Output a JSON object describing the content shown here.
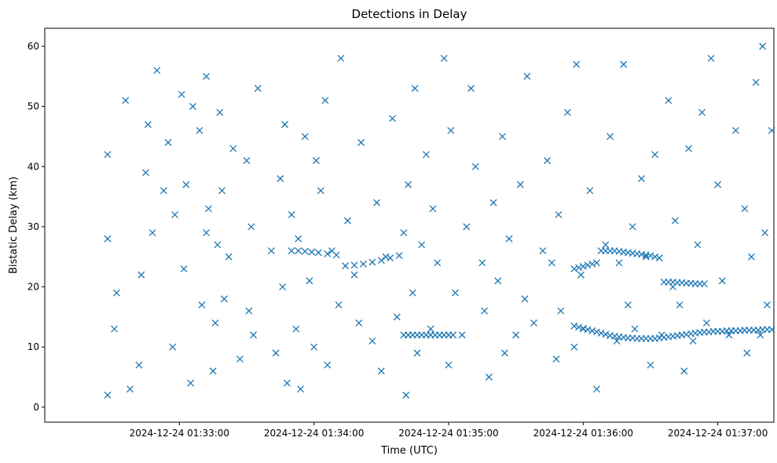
{
  "chart_data": {
    "type": "scatter",
    "title": "Detections in Delay",
    "xlabel": "Time (UTC)",
    "ylabel": "Bistatic Delay (km)",
    "x_ticks": [
      "2024-12-24 01:33:00",
      "2024-12-24 01:34:00",
      "2024-12-24 01:35:00",
      "2024-12-24 01:36:00",
      "2024-12-24 01:37:00"
    ],
    "x_tick_seconds": [
      60,
      120,
      180,
      240,
      300
    ],
    "y_ticks": [
      0,
      10,
      20,
      30,
      40,
      50,
      60
    ],
    "x_range_seconds": [
      0,
      325
    ],
    "ylim": [
      -2.5,
      63
    ],
    "grid": false,
    "legend": "none",
    "marker": "x",
    "color": "#1f77b4",
    "x_start": "2024-12-24 01:32:00",
    "series": [
      {
        "x_seconds": [
          28,
          28,
          28,
          31,
          32,
          36,
          38,
          42,
          43,
          45,
          46,
          48,
          50,
          53,
          55,
          57,
          58,
          61,
          62,
          63,
          65,
          66,
          69,
          70,
          72,
          72,
          73,
          75,
          76,
          77,
          78,
          79,
          80,
          82,
          84,
          87,
          90,
          91,
          92,
          93,
          95,
          101,
          103,
          105,
          106,
          107,
          108,
          110,
          112,
          113,
          114,
          116,
          118,
          120,
          121,
          123,
          125,
          126,
          128,
          131,
          132,
          135,
          138,
          140,
          141,
          146,
          148,
          150,
          152,
          155,
          157,
          160,
          161,
          162,
          164,
          165,
          166,
          168,
          170,
          172,
          173,
          175,
          178,
          180,
          181,
          183,
          186,
          188,
          190,
          192,
          195,
          196,
          198,
          200,
          202,
          204,
          205,
          207,
          210,
          212,
          214,
          215,
          218,
          222,
          224,
          226,
          228,
          229,
          230,
          233,
          236,
          237,
          239,
          240,
          243,
          246,
          250,
          252,
          255,
          256,
          258,
          260,
          262,
          263,
          266,
          268,
          270,
          272,
          275,
          278,
          280,
          281,
          283,
          285,
          287,
          289,
          291,
          293,
          295,
          297,
          300,
          302,
          305,
          308,
          312,
          313,
          315,
          317,
          319,
          320,
          321,
          322,
          324
        ],
        "y": [
          2,
          28,
          42,
          13,
          19,
          51,
          3,
          7,
          22,
          39,
          47,
          29,
          56,
          36,
          44,
          10,
          32,
          52,
          23,
          37,
          4,
          50,
          46,
          17,
          29,
          55,
          33,
          6,
          14,
          27,
          49,
          36,
          18,
          25,
          43,
          8,
          41,
          16,
          30,
          12,
          53,
          26,
          9,
          38,
          20,
          47,
          4,
          32,
          13,
          28,
          3,
          45,
          21,
          10,
          41,
          36,
          51,
          7,
          26,
          17,
          58,
          31,
          22,
          14,
          44,
          11,
          34,
          6,
          25,
          48,
          15,
          29,
          2,
          37,
          19,
          53,
          9,
          27,
          42,
          13,
          33,
          24,
          58,
          7,
          46,
          19,
          12,
          30,
          53,
          40,
          24,
          16,
          5,
          34,
          21,
          45,
          9,
          28,
          12,
          37,
          18,
          55,
          14,
          26,
          41,
          24,
          8,
          32,
          16,
          49,
          10,
          57,
          22,
          13,
          36,
          3,
          27,
          45,
          11,
          24,
          57,
          17,
          30,
          13,
          38,
          25,
          7,
          42,
          12,
          51,
          20,
          31,
          17,
          6,
          43,
          11,
          27,
          49,
          14,
          58,
          37,
          21,
          12,
          46,
          33,
          9,
          25,
          54,
          12,
          60,
          29,
          17,
          46
        ]
      },
      {
        "x_seconds": [
          110,
          113,
          116,
          119,
          122,
          126,
          130,
          134,
          138,
          142,
          146,
          150,
          154,
          158,
          160,
          162,
          164,
          166,
          168,
          170,
          172,
          174,
          176,
          178,
          180,
          182
        ],
        "y": [
          26,
          26,
          25.9,
          25.8,
          25.7,
          25.5,
          25.3,
          23.5,
          23.6,
          23.8,
          24.1,
          24.4,
          24.8,
          25.2,
          12,
          12,
          12,
          12,
          12,
          12,
          12,
          12,
          12,
          12,
          12,
          12
        ]
      },
      {
        "x_seconds": [
          236,
          238,
          240,
          242,
          244,
          246,
          248,
          250,
          252,
          254,
          256,
          258,
          260,
          262,
          264,
          266,
          268,
          270,
          272,
          274,
          276,
          278,
          280,
          282,
          284,
          286,
          288,
          290,
          292,
          294,
          296,
          298,
          300,
          302,
          304,
          306,
          308,
          310,
          312,
          314,
          316,
          318,
          320,
          322,
          324
        ],
        "y": [
          13.5,
          13.3,
          13.1,
          12.9,
          12.7,
          12.5,
          12.3,
          12.1,
          11.9,
          11.8,
          11.7,
          11.6,
          11.5,
          11.5,
          11.4,
          11.4,
          11.4,
          11.4,
          11.4,
          11.5,
          11.6,
          11.7,
          11.8,
          11.9,
          12,
          12.1,
          12.2,
          12.3,
          12.4,
          12.5,
          12.5,
          12.6,
          12.6,
          12.6,
          12.7,
          12.7,
          12.7,
          12.7,
          12.8,
          12.8,
          12.8,
          12.8,
          12.9,
          12.9,
          12.9
        ]
      },
      {
        "x_seconds": [
          236,
          238,
          240,
          242,
          244,
          246,
          248,
          250,
          252,
          254,
          256,
          258,
          260,
          262,
          264,
          266,
          268,
          270,
          272,
          274,
          276,
          278,
          280,
          282,
          284,
          286,
          288,
          290,
          292,
          294
        ],
        "y": [
          23,
          23.2,
          23.4,
          23.6,
          23.8,
          24,
          26,
          26,
          26,
          26,
          25.9,
          25.8,
          25.7,
          25.6,
          25.5,
          25.4,
          25.3,
          25.2,
          25,
          24.8,
          20.8,
          20.8,
          20.8,
          20.7,
          20.7,
          20.6,
          20.6,
          20.5,
          20.5,
          20.5
        ]
      }
    ]
  }
}
